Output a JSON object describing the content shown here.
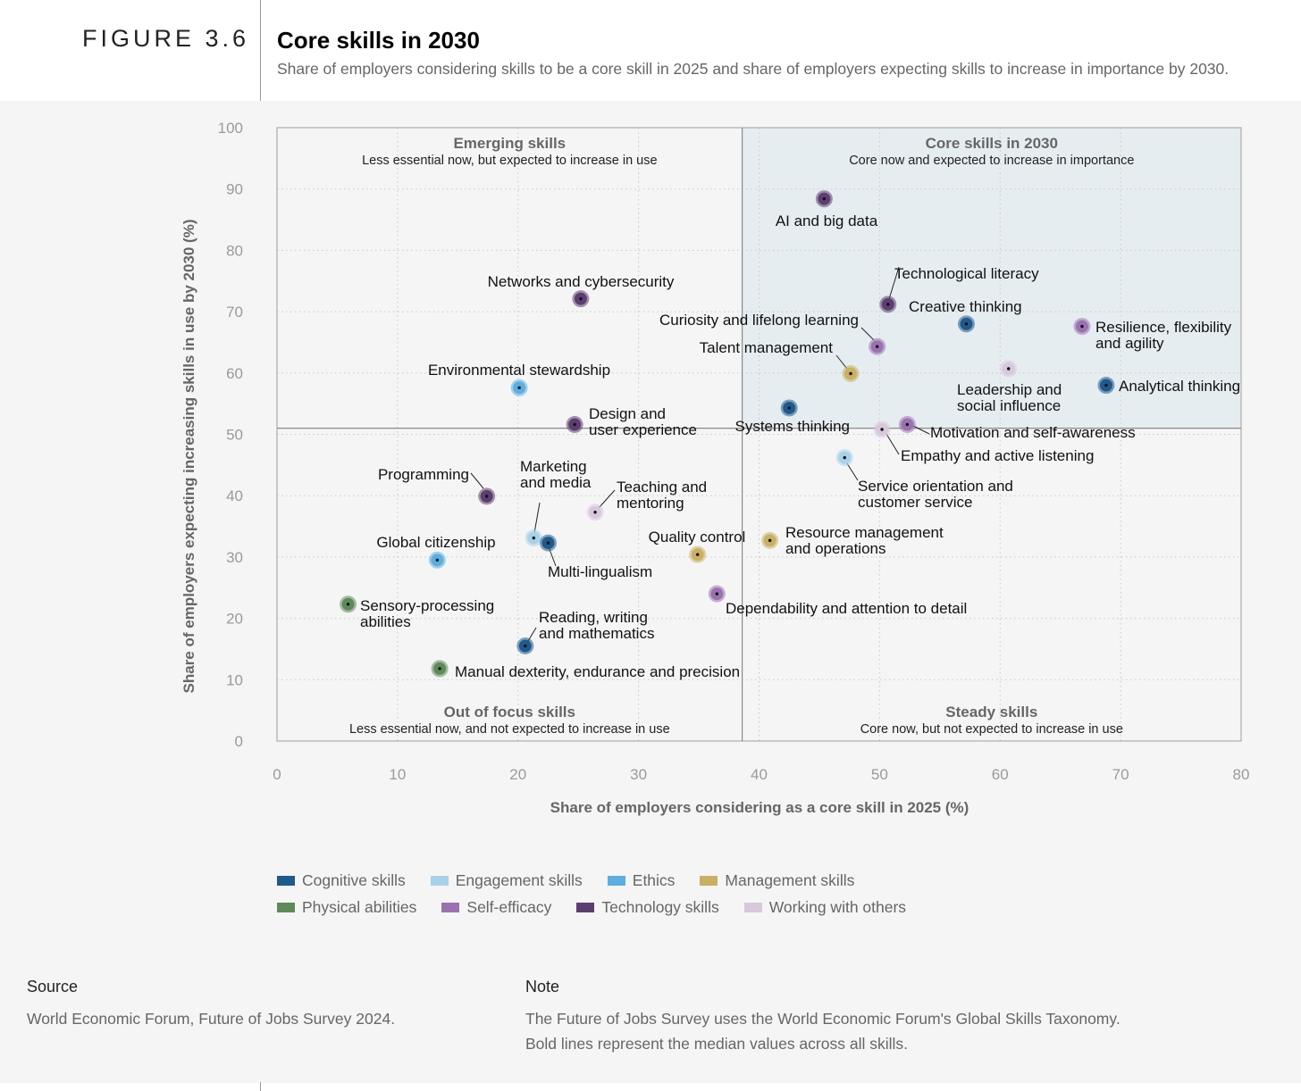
{
  "figure": {
    "number": "FIGURE 3.6",
    "title": "Core skills in 2030",
    "subtitle": "Share of employers considering skills to be a core skill in 2025 and share of employers expecting skills to increase in importance by 2030."
  },
  "chart_data": {
    "type": "scatter",
    "xlabel": "Share of employers considering as a core skill in 2025 (%)",
    "ylabel": "Share of employers expecting increasing skills in use by 2030 (%)",
    "xlim": [
      0,
      80
    ],
    "ylim": [
      0,
      100
    ],
    "xticks": [
      "0",
      "10",
      "20",
      "30",
      "40",
      "50",
      "60",
      "70",
      "80"
    ],
    "yticks": [
      "0",
      "10",
      "20",
      "30",
      "40",
      "50",
      "60",
      "70",
      "80",
      "90",
      "100"
    ],
    "grid": true,
    "medians": {
      "x": 38.6,
      "y": 51
    },
    "quadrants": [
      {
        "title": "Emerging skills",
        "subtitle": "Less essential now, but expected to increase in use"
      },
      {
        "title": "Core skills in 2030",
        "subtitle": "Core now and expected to increase in importance"
      },
      {
        "title": "Out of focus skills",
        "subtitle": "Less essential now, and not expected to increase in use"
      },
      {
        "title": "Steady skills",
        "subtitle": "Core now, but not expected to increase in use"
      }
    ],
    "categories": [
      {
        "name": "Cognitive skills",
        "color": "#1f5a8c"
      },
      {
        "name": "Engagement skills",
        "color": "#a8d1ea"
      },
      {
        "name": "Ethics",
        "color": "#5baee0"
      },
      {
        "name": "Management skills",
        "color": "#c9b063"
      },
      {
        "name": "Physical abilities",
        "color": "#5e8a5a"
      },
      {
        "name": "Self-efficacy",
        "color": "#9b72b0"
      },
      {
        "name": "Technology skills",
        "color": "#5d3e70"
      },
      {
        "name": "Working with others",
        "color": "#d8c8dc"
      }
    ],
    "points": [
      {
        "label": "AI and big data",
        "x": 45.4,
        "y": 88.4,
        "category": 6
      },
      {
        "label": "Technological literacy",
        "x": 50.7,
        "y": 71.2,
        "category": 6
      },
      {
        "label": "Creative thinking",
        "x": 57.2,
        "y": 68.0,
        "category": 0
      },
      {
        "label": "Resilience, flexibility and agility",
        "x": 66.8,
        "y": 67.6,
        "category": 5
      },
      {
        "label": "Curiosity and lifelong learning",
        "x": 49.8,
        "y": 64.3,
        "category": 5
      },
      {
        "label": "Talent management",
        "x": 47.6,
        "y": 59.9,
        "category": 3
      },
      {
        "label": "Leadership and social influence",
        "x": 60.7,
        "y": 60.7,
        "category": 7
      },
      {
        "label": "Analytical thinking",
        "x": 68.8,
        "y": 58.0,
        "category": 0
      },
      {
        "label": "Systems thinking",
        "x": 42.5,
        "y": 54.3,
        "category": 0
      },
      {
        "label": "Motivation and self-awareness",
        "x": 52.3,
        "y": 51.6,
        "category": 5
      },
      {
        "label": "Empathy and active listening",
        "x": 50.2,
        "y": 50.8,
        "category": 7
      },
      {
        "label": "Service orientation and customer service",
        "x": 47.1,
        "y": 46.2,
        "category": 1
      },
      {
        "label": "Networks and cybersecurity",
        "x": 25.2,
        "y": 72.1,
        "category": 6
      },
      {
        "label": "Environmental stewardship",
        "x": 20.1,
        "y": 57.6,
        "category": 2
      },
      {
        "label": "Design and user experience",
        "x": 24.7,
        "y": 51.6,
        "category": 6
      },
      {
        "label": "Programming",
        "x": 17.4,
        "y": 39.9,
        "category": 6
      },
      {
        "label": "Teaching and mentoring",
        "x": 26.4,
        "y": 37.3,
        "category": 7
      },
      {
        "label": "Marketing and media",
        "x": 21.3,
        "y": 33.1,
        "category": 1
      },
      {
        "label": "Multi-lingualism",
        "x": 22.5,
        "y": 32.3,
        "category": 0
      },
      {
        "label": "Global citizenship",
        "x": 13.3,
        "y": 29.5,
        "category": 2
      },
      {
        "label": "Quality control",
        "x": 34.9,
        "y": 30.4,
        "category": 3
      },
      {
        "label": "Resource management and operations",
        "x": 40.9,
        "y": 32.7,
        "category": 3
      },
      {
        "label": "Dependability and attention to detail",
        "x": 36.5,
        "y": 24.0,
        "category": 5
      },
      {
        "label": "Sensory-processing abilities",
        "x": 5.9,
        "y": 22.3,
        "category": 4
      },
      {
        "label": "Reading, writing and mathematics",
        "x": 20.6,
        "y": 15.5,
        "category": 0
      },
      {
        "label": "Manual dexterity, endurance and precision",
        "x": 13.5,
        "y": 11.8,
        "category": 4
      }
    ]
  },
  "source": {
    "heading": "Source",
    "text": "World Economic Forum, Future of Jobs Survey 2024."
  },
  "note": {
    "heading": "Note",
    "lines": [
      "The Future of Jobs Survey uses the World Economic Forum's Global Skills Taxonomy.",
      "Bold lines represent the median values across all skills."
    ]
  }
}
